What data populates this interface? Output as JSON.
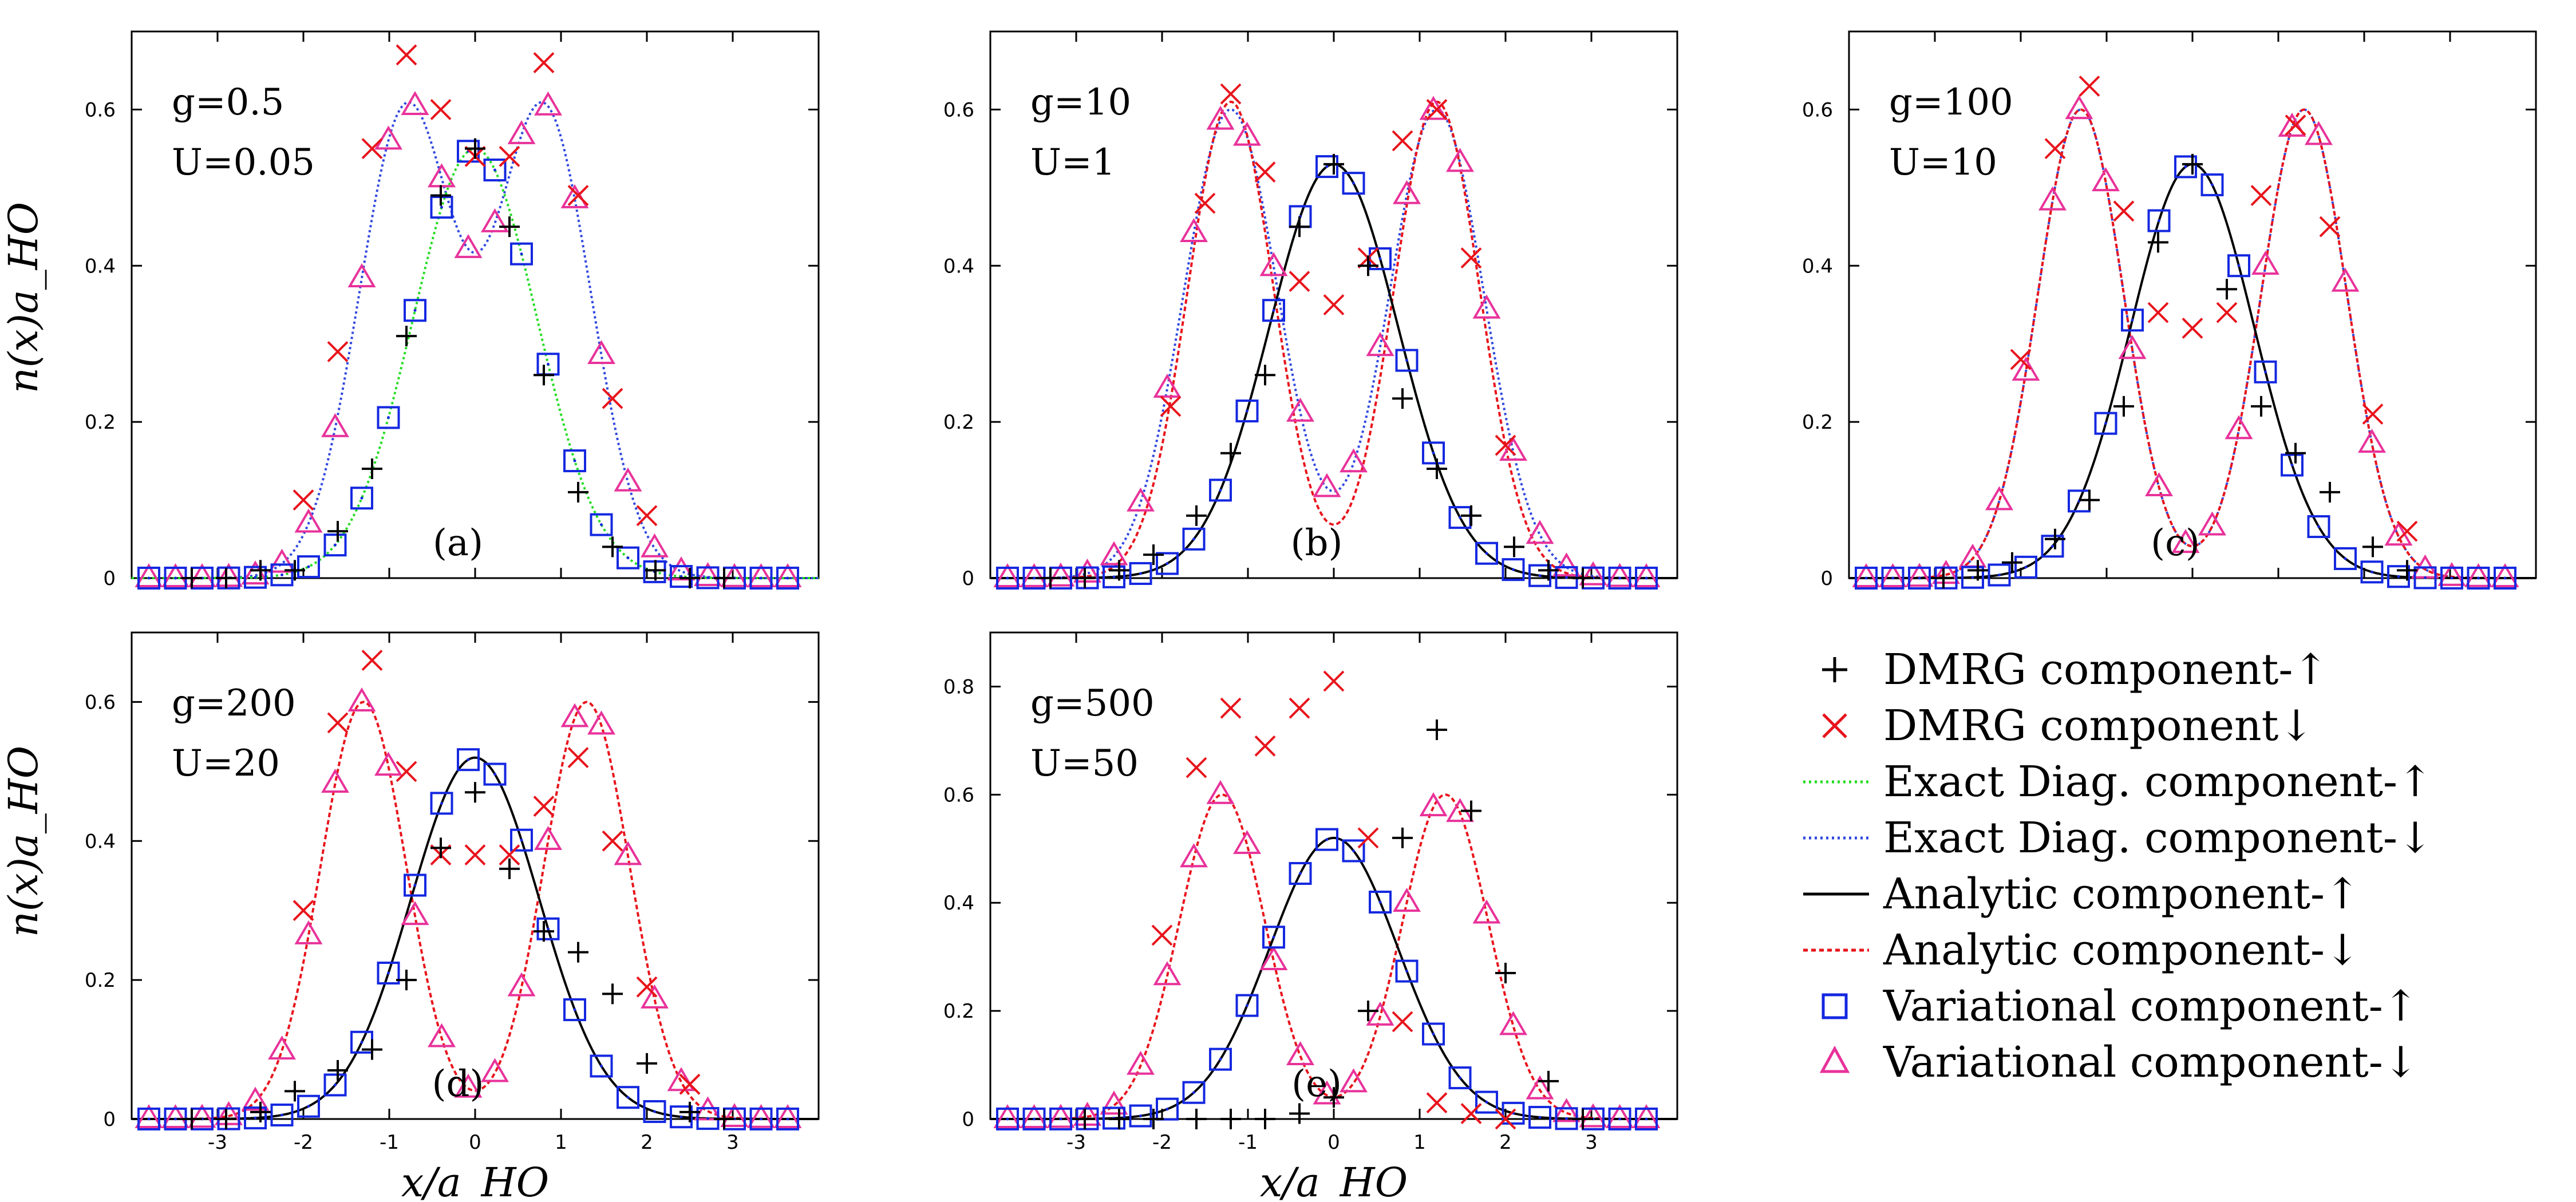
{
  "figure": {
    "xlabel": "x/a_HO",
    "ylabel": "n(x)a_HO",
    "colors": {
      "dmrg_up": "#000000",
      "dmrg_down": "#e8141c",
      "exact_up": "#22dd22",
      "exact_down": "#3048e0",
      "analytic_up": "#000000",
      "analytic_down": "#e8141c",
      "var_up": "#1428e0",
      "var_down": "#e8329a"
    },
    "legend": [
      {
        "key": "dmrg_up",
        "label": "DMRG component-↑",
        "marker": "plus"
      },
      {
        "key": "dmrg_down",
        "label": "DMRG component↓",
        "marker": "cross"
      },
      {
        "key": "exact_up",
        "label": "Exact Diag. component-↑",
        "marker": "dotted-line"
      },
      {
        "key": "exact_down",
        "label": "Exact Diag. component-↓",
        "marker": "dotted-line"
      },
      {
        "key": "analytic_up",
        "label": "Analytic component-↑",
        "marker": "solid-line"
      },
      {
        "key": "analytic_down",
        "label": "Analytic component-↓",
        "marker": "dashed-line"
      },
      {
        "key": "var_up",
        "label": "Variational component-↑",
        "marker": "square"
      },
      {
        "key": "var_down",
        "label": "Variational component-↓",
        "marker": "triangle"
      }
    ]
  },
  "chart_data": [
    {
      "panel": "a",
      "type": "line",
      "label": "(a)",
      "g_label": "g=0.5",
      "u_label": "U=0.05",
      "xlim": [
        -4,
        4
      ],
      "ylim": [
        0,
        0.7
      ],
      "xticks": [],
      "yticks": [
        0,
        0.2,
        0.4,
        0.6
      ],
      "ytick_labels": [
        "0",
        "0.2",
        "0.4",
        "0.6"
      ],
      "exact_up": {
        "kind": "gauss",
        "params": [
          [
            0,
            0.55,
            0.72
          ]
        ]
      },
      "exact_down": {
        "kind": "gauss",
        "params": [
          [
            -0.8,
            0.6,
            0.55
          ],
          [
            0.8,
            0.6,
            0.55
          ]
        ]
      },
      "var_up": {
        "kind": "gauss",
        "params": [
          [
            0,
            0.55,
            0.72
          ]
        ]
      },
      "var_down": {
        "kind": "gauss",
        "params": [
          [
            -0.8,
            0.6,
            0.55
          ],
          [
            0.8,
            0.6,
            0.55
          ]
        ]
      },
      "dmrg_up_points": [
        [
          -3.3,
          0
        ],
        [
          -2.9,
          0
        ],
        [
          -2.5,
          0.01
        ],
        [
          -2.1,
          0.01
        ],
        [
          -1.6,
          0.06
        ],
        [
          -1.2,
          0.14
        ],
        [
          -0.8,
          0.31
        ],
        [
          -0.4,
          0.49
        ],
        [
          0,
          0.55
        ],
        [
          0.4,
          0.45
        ],
        [
          0.8,
          0.26
        ],
        [
          1.2,
          0.11
        ],
        [
          1.6,
          0.04
        ],
        [
          2.1,
          0.01
        ],
        [
          2.5,
          0
        ],
        [
          2.9,
          0
        ]
      ],
      "dmrg_down_points": [
        [
          -1.6,
          0.29
        ],
        [
          -2.0,
          0.1
        ],
        [
          -1.2,
          0.55
        ],
        [
          -0.8,
          0.67
        ],
        [
          -0.4,
          0.6
        ],
        [
          0,
          0.54
        ],
        [
          0.4,
          0.54
        ],
        [
          0.8,
          0.66
        ],
        [
          1.2,
          0.49
        ],
        [
          1.6,
          0.23
        ],
        [
          2.0,
          0.08
        ]
      ]
    },
    {
      "panel": "b",
      "type": "line",
      "label": "(b)",
      "g_label": "g=10",
      "u_label": "U=1",
      "xlim": [
        -4,
        4
      ],
      "ylim": [
        0,
        0.7
      ],
      "xticks": [],
      "yticks": [
        0,
        0.2,
        0.4,
        0.6
      ],
      "ytick_labels": [
        "0",
        "0.2",
        "0.4",
        "0.6"
      ],
      "analytic_up": {
        "kind": "gauss",
        "params": [
          [
            0,
            0.53,
            0.75
          ]
        ]
      },
      "analytic_down": {
        "kind": "gauss",
        "params": [
          [
            -1.2,
            0.61,
            0.5
          ],
          [
            1.2,
            0.61,
            0.5
          ]
        ]
      },
      "exact_up": {
        "kind": "gauss",
        "params": [
          [
            0,
            0.53,
            0.75
          ]
        ]
      },
      "exact_down": {
        "kind": "gauss",
        "params": [
          [
            -1.2,
            0.6,
            0.55
          ],
          [
            1.2,
            0.6,
            0.55
          ]
        ]
      },
      "var_up": {
        "kind": "gauss",
        "params": [
          [
            0,
            0.53,
            0.75
          ]
        ]
      },
      "var_down": {
        "kind": "gauss",
        "params": [
          [
            -1.2,
            0.6,
            0.55
          ],
          [
            1.2,
            0.6,
            0.55
          ]
        ]
      },
      "dmrg_up_points": [
        [
          -3.3,
          0
        ],
        [
          -2.9,
          0
        ],
        [
          -2.5,
          0.01
        ],
        [
          -2.1,
          0.03
        ],
        [
          -1.6,
          0.08
        ],
        [
          -1.2,
          0.16
        ],
        [
          -0.8,
          0.26
        ],
        [
          -0.4,
          0.45
        ],
        [
          0,
          0.53
        ],
        [
          0.4,
          0.4
        ],
        [
          0.8,
          0.23
        ],
        [
          1.2,
          0.14
        ],
        [
          1.6,
          0.08
        ],
        [
          2.1,
          0.04
        ],
        [
          2.5,
          0.01
        ],
        [
          2.9,
          0
        ]
      ],
      "dmrg_down_points": [
        [
          -1.9,
          0.22
        ],
        [
          -1.5,
          0.48
        ],
        [
          -1.2,
          0.62
        ],
        [
          -0.8,
          0.52
        ],
        [
          -0.4,
          0.38
        ],
        [
          0,
          0.35
        ],
        [
          0.4,
          0.41
        ],
        [
          0.8,
          0.56
        ],
        [
          1.2,
          0.6
        ],
        [
          1.6,
          0.41
        ],
        [
          2.0,
          0.17
        ]
      ]
    },
    {
      "panel": "c",
      "type": "line",
      "label": "(c)",
      "g_label": "g=100",
      "u_label": "U=10",
      "xlim": [
        -4,
        4
      ],
      "ylim": [
        0,
        0.7
      ],
      "xticks": [],
      "yticks": [
        0,
        0.2,
        0.4,
        0.6
      ],
      "ytick_labels": [
        "0",
        "0.2",
        "0.4",
        "0.6"
      ],
      "analytic_up": {
        "kind": "gauss",
        "params": [
          [
            0,
            0.53,
            0.72
          ]
        ]
      },
      "analytic_down": {
        "kind": "gauss",
        "params": [
          [
            -1.3,
            0.6,
            0.5
          ],
          [
            1.3,
            0.6,
            0.5
          ]
        ]
      },
      "exact_down": {
        "kind": "gauss",
        "params": [
          [
            -1.3,
            0.6,
            0.5
          ],
          [
            1.3,
            0.6,
            0.5
          ]
        ]
      },
      "var_up": {
        "kind": "gauss",
        "params": [
          [
            0,
            0.53,
            0.72
          ]
        ]
      },
      "var_down": {
        "kind": "gauss",
        "params": [
          [
            -1.3,
            0.6,
            0.5
          ],
          [
            1.3,
            0.6,
            0.5
          ]
        ]
      },
      "dmrg_up_points": [
        [
          -2.9,
          0
        ],
        [
          -2.5,
          0.01
        ],
        [
          -2.1,
          0.02
        ],
        [
          -1.6,
          0.05
        ],
        [
          -1.2,
          0.1
        ],
        [
          -0.8,
          0.22
        ],
        [
          -0.4,
          0.43
        ],
        [
          0,
          0.53
        ],
        [
          0.4,
          0.37
        ],
        [
          0.8,
          0.22
        ],
        [
          1.2,
          0.16
        ],
        [
          1.6,
          0.11
        ],
        [
          2.1,
          0.04
        ],
        [
          2.5,
          0.01
        ]
      ],
      "dmrg_down_points": [
        [
          -2.0,
          0.28
        ],
        [
          -1.6,
          0.55
        ],
        [
          -1.2,
          0.63
        ],
        [
          -0.8,
          0.47
        ],
        [
          -0.4,
          0.34
        ],
        [
          0,
          0.32
        ],
        [
          0.4,
          0.34
        ],
        [
          0.8,
          0.49
        ],
        [
          1.2,
          0.58
        ],
        [
          1.6,
          0.45
        ],
        [
          2.1,
          0.21
        ],
        [
          2.5,
          0.06
        ]
      ]
    },
    {
      "panel": "d",
      "type": "line",
      "label": "(d)",
      "g_label": "g=200",
      "u_label": "U=20",
      "xlim": [
        -4,
        4
      ],
      "ylim": [
        0,
        0.7
      ],
      "xticks": [
        -3,
        -2,
        -1,
        0,
        1,
        2,
        3
      ],
      "yticks": [
        0,
        0.2,
        0.4,
        0.6
      ],
      "ytick_labels": [
        "0",
        "0.2",
        "0.4",
        "0.6"
      ],
      "analytic_up": {
        "kind": "gauss",
        "params": [
          [
            0,
            0.52,
            0.75
          ]
        ]
      },
      "analytic_down": {
        "kind": "gauss",
        "params": [
          [
            -1.3,
            0.6,
            0.5
          ],
          [
            1.3,
            0.6,
            0.5
          ]
        ]
      },
      "var_up": {
        "kind": "gauss",
        "params": [
          [
            0,
            0.52,
            0.75
          ]
        ]
      },
      "var_down": {
        "kind": "gauss",
        "params": [
          [
            -1.3,
            0.6,
            0.5
          ],
          [
            1.3,
            0.6,
            0.5
          ]
        ]
      },
      "dmrg_up_points": [
        [
          -3.3,
          0
        ],
        [
          -2.9,
          0
        ],
        [
          -2.5,
          0.01
        ],
        [
          -2.1,
          0.04
        ],
        [
          -1.6,
          0.07
        ],
        [
          -1.2,
          0.1
        ],
        [
          -0.8,
          0.2
        ],
        [
          -0.4,
          0.39
        ],
        [
          0,
          0.47
        ],
        [
          0.4,
          0.36
        ],
        [
          0.8,
          0.27
        ],
        [
          1.2,
          0.24
        ],
        [
          1.6,
          0.18
        ],
        [
          2.0,
          0.08
        ],
        [
          2.5,
          0.01
        ],
        [
          2.9,
          0
        ]
      ],
      "dmrg_down_points": [
        [
          -2.0,
          0.3
        ],
        [
          -1.6,
          0.57
        ],
        [
          -1.2,
          0.66
        ],
        [
          -0.8,
          0.5
        ],
        [
          -0.4,
          0.38
        ],
        [
          0,
          0.38
        ],
        [
          0.4,
          0.38
        ],
        [
          0.8,
          0.45
        ],
        [
          1.2,
          0.52
        ],
        [
          1.6,
          0.4
        ],
        [
          2.0,
          0.19
        ],
        [
          2.5,
          0.05
        ]
      ]
    },
    {
      "panel": "e",
      "type": "line",
      "label": "(e)",
      "g_label": "g=500",
      "u_label": "U=50",
      "xlim": [
        -4,
        4
      ],
      "ylim": [
        0,
        0.9
      ],
      "xticks": [
        -3,
        -2,
        -1,
        0,
        1,
        2,
        3
      ],
      "yticks": [
        0,
        0.2,
        0.4,
        0.6,
        0.8
      ],
      "ytick_labels": [
        "0",
        "0.2",
        "0.4",
        "0.6",
        "0.8"
      ],
      "analytic_up": {
        "kind": "gauss",
        "params": [
          [
            0,
            0.52,
            0.75
          ]
        ]
      },
      "analytic_down": {
        "kind": "gauss",
        "params": [
          [
            -1.3,
            0.6,
            0.5
          ],
          [
            1.3,
            0.6,
            0.5
          ]
        ]
      },
      "var_up": {
        "kind": "gauss",
        "params": [
          [
            0,
            0.52,
            0.75
          ]
        ]
      },
      "var_down": {
        "kind": "gauss",
        "params": [
          [
            -1.3,
            0.6,
            0.5
          ],
          [
            1.3,
            0.6,
            0.5
          ]
        ]
      },
      "dmrg_up_points": [
        [
          -2.9,
          0
        ],
        [
          -2.5,
          0
        ],
        [
          -2.1,
          0
        ],
        [
          -1.6,
          0
        ],
        [
          -1.2,
          0
        ],
        [
          -0.8,
          0
        ],
        [
          -0.4,
          0.01
        ],
        [
          0,
          0.04
        ],
        [
          0.4,
          0.2
        ],
        [
          0.8,
          0.52
        ],
        [
          1.2,
          0.72
        ],
        [
          1.6,
          0.57
        ],
        [
          2.0,
          0.27
        ],
        [
          2.5,
          0.07
        ],
        [
          2.9,
          0
        ]
      ],
      "dmrg_down_points": [
        [
          -2.0,
          0.34
        ],
        [
          -1.6,
          0.65
        ],
        [
          -1.2,
          0.76
        ],
        [
          -0.8,
          0.69
        ],
        [
          -0.4,
          0.76
        ],
        [
          0,
          0.81
        ],
        [
          0.4,
          0.52
        ],
        [
          0.8,
          0.18
        ],
        [
          1.2,
          0.03
        ],
        [
          1.6,
          0.01
        ],
        [
          2.0,
          0
        ]
      ]
    }
  ]
}
